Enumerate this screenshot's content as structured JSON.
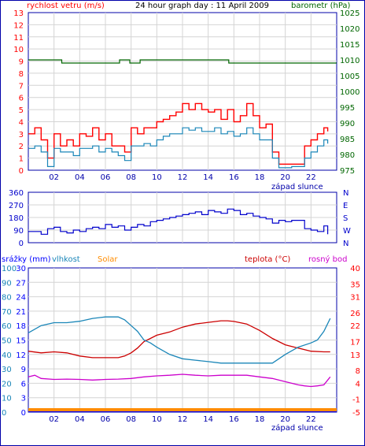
{
  "header": {
    "title": "24 hour graph day : 11 April 2009",
    "left_label": "rychlost vetru (m/s)",
    "right_label": "barometr (hPa)"
  },
  "colors": {
    "frame": "#0000aa",
    "grid": "#d4d4d4",
    "wind_gust": "#ff0000",
    "wind_avg": "#1a86b8",
    "pressure": "#006600",
    "direction": "#0000cc",
    "rain": "#0000ff",
    "humidity": "#1a86b8",
    "solar": "#ff8c00",
    "temperature": "#cc0000",
    "dewpoint": "#cc00cc",
    "axis_red": "#ff0000",
    "axis_green": "#006600",
    "axis_blue": "#0000ff",
    "axis_navy": "#0000cc",
    "axis_text_dark": "#0000aa"
  },
  "sunset_label": "západ slunce",
  "x_axis": {
    "range": [
      0,
      24
    ],
    "ticks": [
      2,
      4,
      6,
      8,
      10,
      12,
      14,
      16,
      18,
      20,
      22
    ],
    "tick_labels": [
      "02",
      "04",
      "06",
      "08",
      "10",
      "12",
      "14",
      "16",
      "18",
      "20",
      "22"
    ]
  },
  "chart_data": [
    {
      "type": "line",
      "x_range": [
        0,
        24
      ],
      "left_axis": {
        "label": "rychlost vetru (m/s)",
        "range": [
          0,
          13
        ],
        "ticks": [
          0,
          1,
          2,
          3,
          4,
          5,
          6,
          7,
          8,
          9,
          10,
          11,
          12,
          13
        ]
      },
      "right_axis": {
        "label": "barometr (hPa)",
        "range": [
          975,
          1025
        ],
        "ticks": [
          975,
          980,
          985,
          990,
          995,
          1000,
          1005,
          1010,
          1015,
          1020,
          1025
        ]
      },
      "series": [
        {
          "name": "wind_gust",
          "x": [
            0,
            0.5,
            1,
            1.5,
            2,
            2.5,
            3,
            3.5,
            4,
            4.5,
            5,
            5.5,
            6,
            6.5,
            7,
            7.5,
            8,
            8.5,
            9,
            9.5,
            10,
            10.5,
            11,
            11.5,
            12,
            12.5,
            13,
            13.5,
            14,
            14.5,
            15,
            15.5,
            16,
            16.5,
            17,
            17.5,
            18,
            18.5,
            19,
            19.5,
            20,
            20.5,
            21,
            21.5,
            22,
            22.5,
            23,
            23.3
          ],
          "y": [
            3,
            3.5,
            2.5,
            1,
            3,
            2,
            2.5,
            2,
            3,
            2.8,
            3.5,
            2.5,
            3,
            2,
            2,
            1.5,
            3.5,
            3,
            3.5,
            3.5,
            4,
            4.2,
            4.5,
            4.8,
            5.5,
            5,
            5.5,
            5,
            4.8,
            5,
            4.2,
            5,
            4,
            4.5,
            5.5,
            4.5,
            3.5,
            3.8,
            1.5,
            0.5,
            0.5,
            0.5,
            0.5,
            2,
            2.5,
            3,
            3.5,
            3.2
          ]
        },
        {
          "name": "wind_avg",
          "x": [
            0,
            0.5,
            1,
            1.5,
            2,
            2.5,
            3,
            3.5,
            4,
            4.5,
            5,
            5.5,
            6,
            6.5,
            7,
            7.5,
            8,
            8.5,
            9,
            9.5,
            10,
            10.5,
            11,
            11.5,
            12,
            12.5,
            13,
            13.5,
            14,
            14.5,
            15,
            15.5,
            16,
            16.5,
            17,
            17.5,
            18,
            18.5,
            19,
            19.5,
            20,
            20.5,
            21,
            21.5,
            22,
            22.5,
            23,
            23.3
          ],
          "y": [
            1.8,
            2,
            1.5,
            0.3,
            1.8,
            1.5,
            1.5,
            1.2,
            1.8,
            1.8,
            2,
            1.5,
            1.8,
            1.5,
            1.2,
            0.8,
            2,
            2,
            2.2,
            2,
            2.5,
            2.8,
            3,
            3,
            3.5,
            3.3,
            3.5,
            3.2,
            3.2,
            3.5,
            3,
            3.2,
            2.8,
            3,
            3.5,
            3,
            2.5,
            2.5,
            1,
            0.2,
            0.2,
            0.3,
            0.3,
            1,
            1.5,
            2,
            2.5,
            2.2
          ]
        },
        {
          "name": "pressure",
          "axis": "right",
          "x": [
            0,
            2.5,
            2.6,
            7,
            7.1,
            7.8,
            7.9,
            8.6,
            8.7,
            15.5,
            15.6,
            24
          ],
          "y": [
            1010,
            1010,
            1009,
            1009,
            1010,
            1010,
            1009,
            1009,
            1010,
            1010,
            1009,
            1009
          ]
        }
      ]
    },
    {
      "type": "line",
      "x_range": [
        0,
        24
      ],
      "left_axis": {
        "range": [
          0,
          360
        ],
        "ticks": [
          0,
          90,
          180,
          270,
          360
        ],
        "tick_labels": [
          "0",
          "90",
          "180",
          "270",
          "360"
        ]
      },
      "right_axis": {
        "tick_labels": [
          "N",
          "W",
          "S",
          "E",
          "N"
        ]
      },
      "series": [
        {
          "name": "wind_direction",
          "x": [
            0,
            1,
            1.5,
            2,
            2.5,
            3,
            3.5,
            4,
            4.5,
            5,
            5.5,
            6,
            6.5,
            7,
            7.5,
            8,
            8.5,
            9,
            9.5,
            10,
            10.5,
            11,
            11.5,
            12,
            12.5,
            13,
            13.5,
            14,
            14.5,
            15,
            15.5,
            16,
            16.5,
            17,
            17.5,
            18,
            18.5,
            19,
            19.5,
            20,
            20.5,
            21,
            21.5,
            22,
            22.5,
            23,
            23.3
          ],
          "y": [
            80,
            60,
            100,
            110,
            80,
            70,
            90,
            80,
            100,
            110,
            100,
            130,
            110,
            120,
            90,
            110,
            130,
            120,
            150,
            160,
            170,
            180,
            190,
            200,
            210,
            220,
            200,
            230,
            220,
            210,
            240,
            230,
            200,
            210,
            190,
            180,
            170,
            140,
            160,
            150,
            160,
            160,
            100,
            90,
            80,
            120,
            60
          ]
        }
      ]
    },
    {
      "type": "line",
      "x_range": [
        0,
        24
      ],
      "legend": [
        "srážky (mm)",
        "vlhkost",
        "Solar",
        "teplota (°C)",
        "rosný bod"
      ],
      "axis_rain": {
        "label": "srážky (mm)",
        "range": [
          0,
          30
        ],
        "ticks": [
          0,
          3,
          6,
          9,
          12,
          15,
          18,
          21,
          24,
          27,
          30
        ]
      },
      "axis_humidity": {
        "label": "vlhkost",
        "range": [
          0,
          100
        ],
        "ticks": [
          0,
          10,
          20,
          30,
          40,
          50,
          60,
          70,
          80,
          90,
          100
        ]
      },
      "axis_temperature": {
        "label": "teplota (°C)",
        "range": [
          -5,
          40
        ],
        "ticks": [
          -5,
          -1,
          4,
          8,
          13,
          17,
          22,
          26,
          31,
          35,
          40
        ]
      },
      "series": [
        {
          "name": "temperature",
          "x": [
            0,
            1,
            2,
            3,
            4,
            5,
            6,
            7,
            7.5,
            8,
            8.5,
            9,
            9.5,
            10,
            11,
            12,
            13,
            14,
            15,
            15.5,
            16,
            17,
            18,
            19,
            20,
            21,
            22,
            23,
            23.5
          ],
          "y": [
            14,
            13.5,
            13.8,
            13.5,
            12.5,
            12,
            12,
            12,
            12.5,
            13.5,
            15,
            17,
            18,
            19,
            20,
            21.5,
            22.5,
            23,
            23.5,
            23.5,
            23.3,
            22.5,
            20.5,
            18,
            16,
            15,
            14,
            13.8,
            13.8
          ]
        },
        {
          "name": "humidity",
          "x": [
            0,
            1,
            2,
            3,
            4,
            5,
            6,
            7,
            7.5,
            8,
            8.5,
            9,
            9.5,
            10,
            11,
            12,
            13,
            14,
            15,
            16,
            17,
            18,
            19,
            20,
            21,
            22,
            22.5,
            23,
            23.5
          ],
          "y": [
            55,
            60,
            62,
            62,
            63,
            65,
            66,
            66,
            64,
            60,
            56,
            50,
            48,
            45,
            40,
            37,
            36,
            35,
            34,
            34,
            34,
            34,
            34,
            40,
            45,
            48,
            50,
            56,
            65
          ]
        },
        {
          "name": "dewpoint",
          "x": [
            0,
            0.5,
            1,
            2,
            3,
            4,
            5,
            6,
            7,
            8,
            9,
            10,
            11,
            12,
            13,
            14,
            15,
            16,
            17,
            18,
            19,
            20,
            21,
            21.5,
            22,
            22.5,
            23,
            23.5
          ],
          "y": [
            6,
            6.5,
            5.5,
            5.2,
            5.3,
            5.2,
            5,
            5.2,
            5.3,
            5.5,
            6,
            6.3,
            6.5,
            6.8,
            6.5,
            6.3,
            6.5,
            6.5,
            6.5,
            6,
            5.5,
            4.5,
            3.5,
            3.2,
            3,
            3.2,
            3.5,
            6
          ]
        },
        {
          "name": "solar",
          "x": [
            0,
            24
          ],
          "y": [
            0,
            0
          ]
        },
        {
          "name": "rain",
          "x": [
            0,
            24
          ],
          "y": [
            0,
            0
          ]
        }
      ]
    }
  ]
}
